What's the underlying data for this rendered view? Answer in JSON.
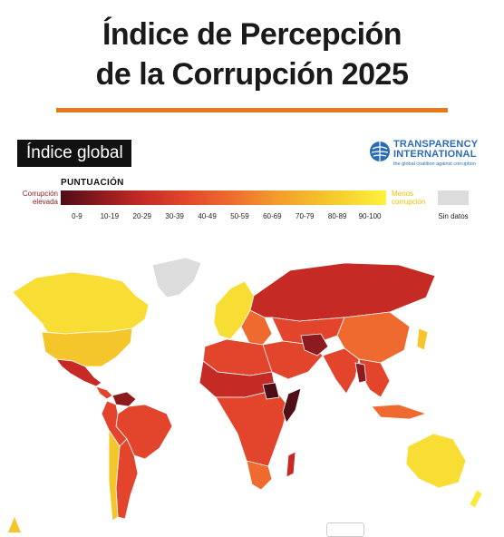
{
  "title": {
    "line1": "Índice de Percepción",
    "line2": "de la Corrupción 2025"
  },
  "badge": "Índice global",
  "logo": {
    "name_line1": "TRANSPARENCY",
    "name_line2": "INTERNATIONAL",
    "tagline": "the global coalition against corruption"
  },
  "legend": {
    "title": "PUNTUACIÓN",
    "low_label_line1": "Corrupción",
    "low_label_line2": "elevada",
    "high_label_line1": "Menos",
    "high_label_line2": "corrupción",
    "ranges": [
      "0-9",
      "10-19",
      "20-29",
      "30-39",
      "40-49",
      "50-59",
      "60-69",
      "70-79",
      "80-89",
      "90-100"
    ],
    "nodata": "Sin datos",
    "colors": {
      "0-9": "#4f0d16",
      "10-19": "#8c1a1e",
      "20-29": "#c62a25",
      "30-39": "#e2452b",
      "40-49": "#ee6a2e",
      "50-59": "#f39a2b",
      "60-69": "#f4c62c",
      "70-79": "#f7dd34",
      "80-89": "#fbe838",
      "90-100": "#fff13a",
      "nodata": "#dcdcdc"
    }
  },
  "map": {
    "regions": [
      {
        "name": "Canada",
        "band": "70-79"
      },
      {
        "name": "United States",
        "band": "60-69"
      },
      {
        "name": "Mexico",
        "band": "20-29"
      },
      {
        "name": "Venezuela",
        "band": "10-19"
      },
      {
        "name": "Brazil",
        "band": "30-39"
      },
      {
        "name": "Argentina",
        "band": "30-39"
      },
      {
        "name": "Chile",
        "band": "60-69"
      },
      {
        "name": "Greenland",
        "band": "nodata"
      },
      {
        "name": "Western Europe",
        "band": "70-79"
      },
      {
        "name": "Russia",
        "band": "20-29"
      },
      {
        "name": "China",
        "band": "40-49"
      },
      {
        "name": "India",
        "band": "30-39"
      },
      {
        "name": "Middle East",
        "band": "30-39"
      },
      {
        "name": "Africa",
        "band": "30-39"
      },
      {
        "name": "Sahel",
        "band": "20-29"
      },
      {
        "name": "Somalia",
        "band": "0-9"
      },
      {
        "name": "South Sudan",
        "band": "0-9"
      },
      {
        "name": "Southeast Asia",
        "band": "30-39"
      },
      {
        "name": "Australia",
        "band": "70-79"
      },
      {
        "name": "Madagascar",
        "band": "20-29"
      },
      {
        "name": "Southern Africa",
        "band": "40-49"
      }
    ]
  }
}
